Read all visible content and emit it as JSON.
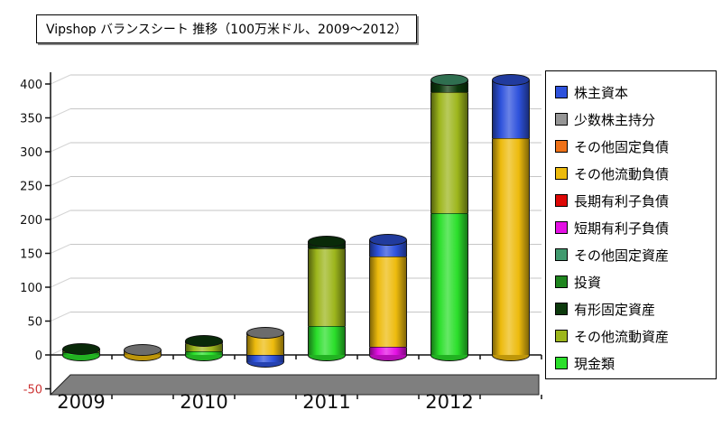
{
  "chart_data": {
    "type": "bar",
    "subtype": "3d-stacked-cylinder",
    "title": "Vipshop バランスシート 推移（100万米ドル、2009～2012）",
    "categories": [
      "2009",
      "2010",
      "2011",
      "2012"
    ],
    "yticks": [
      400,
      350,
      300,
      250,
      200,
      150,
      100,
      50,
      0,
      -50
    ],
    "ylim": [
      -50,
      400
    ],
    "units": "100万米ドル",
    "layout": {
      "bars_per_category": 2,
      "legend_position": "right",
      "grid": true,
      "negative_tick_color": "#CC3333"
    },
    "series": [
      {
        "name": "株主資本",
        "color": "#2E52DC",
        "values": [
          0,
          0,
          0,
          -10,
          0,
          25,
          0,
          86
        ]
      },
      {
        "name": "少数株主持分",
        "color": "#969696",
        "values": [
          0,
          2,
          0,
          3,
          0,
          0,
          0,
          0
        ]
      },
      {
        "name": "その他固定負債",
        "color": "#EE7118",
        "values": [
          0,
          0,
          0,
          0,
          0,
          0,
          0,
          0
        ]
      },
      {
        "name": "その他流動負債",
        "color": "#EDBB0D",
        "values": [
          0,
          5,
          0,
          30,
          0,
          133,
          0,
          320
        ]
      },
      {
        "name": "長期有利子負債",
        "color": "#DD0806",
        "values": [
          0,
          0,
          0,
          0,
          0,
          0,
          0,
          0
        ]
      },
      {
        "name": "短期有利子負債",
        "color": "#E411E4",
        "values": [
          0,
          0,
          0,
          0,
          0,
          12,
          0,
          0
        ]
      },
      {
        "name": "その他固定資産",
        "color": "#419A6F",
        "values": [
          0,
          0,
          0,
          0,
          0,
          0,
          3,
          0
        ]
      },
      {
        "name": "投資",
        "color": "#1F851F",
        "values": [
          0,
          0,
          0,
          0,
          0,
          0,
          0,
          0
        ]
      },
      {
        "name": "有形固定資産",
        "color": "#0D3A0D",
        "values": [
          2,
          0,
          3,
          0,
          10,
          0,
          15,
          0
        ]
      },
      {
        "name": "その他流動資産",
        "color": "#9DB61C",
        "values": [
          3,
          0,
          12,
          0,
          115,
          0,
          178,
          0
        ]
      },
      {
        "name": "現金類",
        "color": "#2BDF2B",
        "values": [
          4,
          0,
          6,
          0,
          43,
          0,
          210,
          0
        ]
      }
    ]
  }
}
